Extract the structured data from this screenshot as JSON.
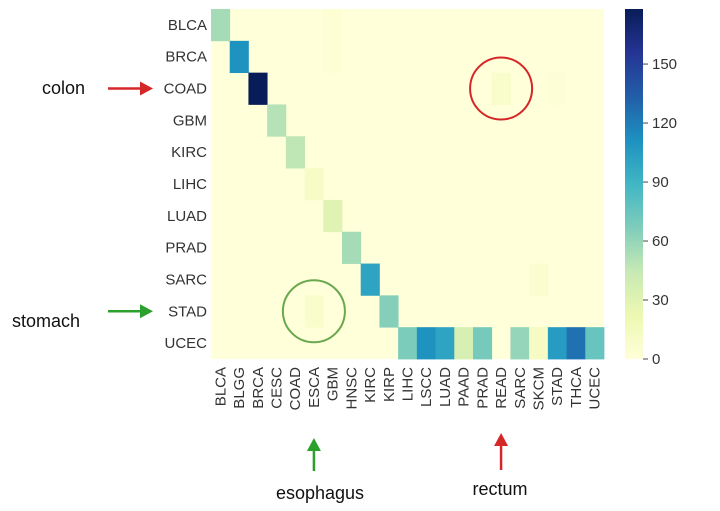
{
  "chart_data": {
    "type": "heatmap",
    "title": "",
    "xlabel": "",
    "ylabel": "",
    "x_categories": [
      "BLCA",
      "BLGG",
      "BRCA",
      "CESC",
      "COAD",
      "ESCA",
      "GBM",
      "HNSC",
      "KIRC",
      "KIRP",
      "LIHC",
      "LSCC",
      "LUAD",
      "PAAD",
      "PRAD",
      "READ",
      "SARC",
      "SKCM",
      "STAD",
      "THCA",
      "UCEC"
    ],
    "y_categories": [
      "BLCA",
      "BRCA",
      "COAD",
      "GBM",
      "KIRC",
      "LIHC",
      "LUAD",
      "PRAD",
      "SARC",
      "STAD",
      "UCEC"
    ],
    "cells": [
      {
        "row": "BLCA",
        "col": "BLCA",
        "value": 55
      },
      {
        "row": "BLCA",
        "col": "GBM",
        "value": 3
      },
      {
        "row": "BRCA",
        "col": "BLGG",
        "value": 110
      },
      {
        "row": "BRCA",
        "col": "GBM",
        "value": 3
      },
      {
        "row": "COAD",
        "col": "BRCA",
        "value": 178
      },
      {
        "row": "COAD",
        "col": "READ",
        "value": 8
      },
      {
        "row": "COAD",
        "col": "STAD",
        "value": 2
      },
      {
        "row": "GBM",
        "col": "CESC",
        "value": 50
      },
      {
        "row": "KIRC",
        "col": "COAD",
        "value": 47
      },
      {
        "row": "LIHC",
        "col": "ESCA",
        "value": 10
      },
      {
        "row": "LUAD",
        "col": "GBM",
        "value": 30
      },
      {
        "row": "PRAD",
        "col": "HNSC",
        "value": 55
      },
      {
        "row": "SARC",
        "col": "KIRC",
        "value": 100
      },
      {
        "row": "SARC",
        "col": "SKCM",
        "value": 5
      },
      {
        "row": "STAD",
        "col": "KIRP",
        "value": 65
      },
      {
        "row": "STAD",
        "col": "ESCA",
        "value": 7
      },
      {
        "row": "UCEC",
        "col": "LIHC",
        "value": 68
      },
      {
        "row": "UCEC",
        "col": "LSCC",
        "value": 110
      },
      {
        "row": "UCEC",
        "col": "LUAD",
        "value": 100
      },
      {
        "row": "UCEC",
        "col": "PAAD",
        "value": 35
      },
      {
        "row": "UCEC",
        "col": "PRAD",
        "value": 70
      },
      {
        "row": "UCEC",
        "col": "SARC",
        "value": 60
      },
      {
        "row": "UCEC",
        "col": "SKCM",
        "value": 12
      },
      {
        "row": "UCEC",
        "col": "STAD",
        "value": 105
      },
      {
        "row": "UCEC",
        "col": "THCA",
        "value": 125
      },
      {
        "row": "UCEC",
        "col": "UCEC",
        "value": 75
      }
    ],
    "colorbar": {
      "min": 0,
      "max": 178,
      "ticks": [
        0,
        30,
        60,
        90,
        120,
        150
      ],
      "colormap": "YlGnBu",
      "stops": [
        "#ffffd9",
        "#edf8b1",
        "#c7e9b4",
        "#7fcdbb",
        "#41b6c4",
        "#1d91c0",
        "#225ea8",
        "#253494",
        "#081d58"
      ]
    },
    "grid": false
  },
  "annotations": {
    "colon": {
      "text": "colon",
      "arrow_color": "#d62728",
      "points_to": "COAD"
    },
    "stomach": {
      "text": "stomach",
      "arrow_color": "#2ca02c",
      "points_to": "STAD"
    },
    "esophagus": {
      "text": "esophagus",
      "arrow_color": "#2ca02c",
      "points_to": "ESCA"
    },
    "rectum": {
      "text": "rectum",
      "arrow_color": "#d62728",
      "points_to": "READ"
    },
    "circles": [
      {
        "row": "COAD",
        "col": "READ",
        "color": "#d62728"
      },
      {
        "row": "STAD",
        "col": "ESCA",
        "color": "#6aa84f"
      }
    ]
  }
}
